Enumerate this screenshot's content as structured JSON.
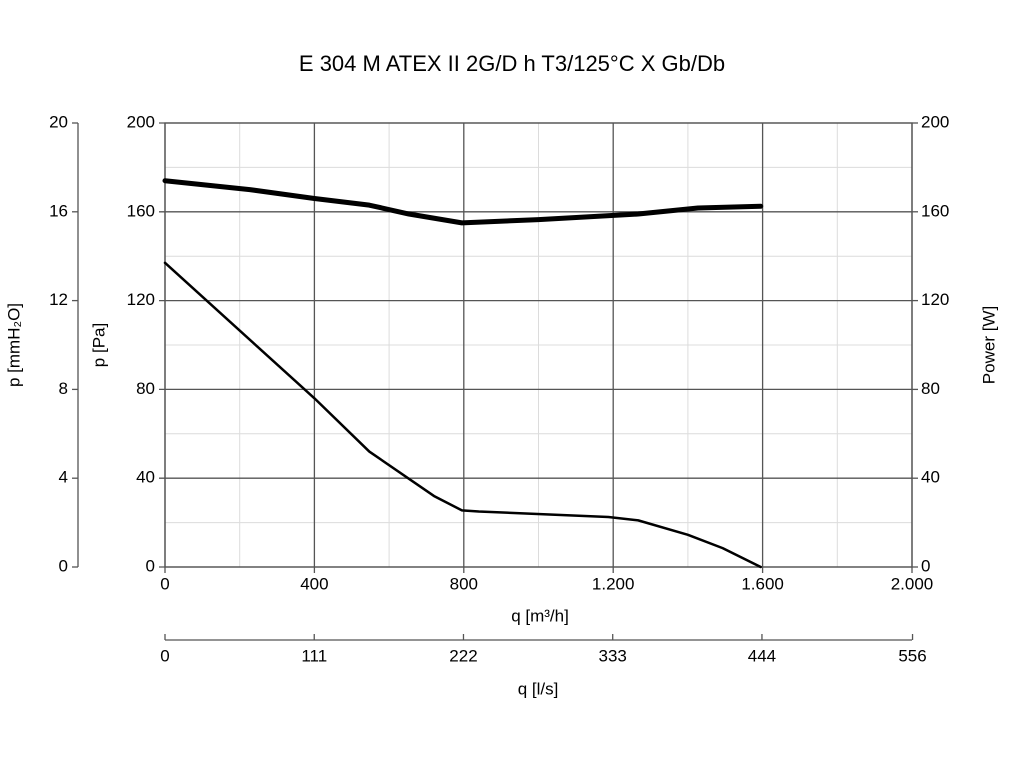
{
  "chart_data": {
    "type": "line",
    "title": "E 304 M ATEX II 2G/D h T3/125°C X Gb/Db",
    "x_label": "q [m³/h]",
    "x2_label": "q [l/s]",
    "y_label": "p [Pa]",
    "y_outer_label": "p [mmH₂O]",
    "y2_label": "Power [W]",
    "xlim": [
      0,
      2000
    ],
    "xticks": [
      0,
      400,
      800,
      {
        "value": 1200,
        "label": "1.200"
      },
      {
        "value": 1600,
        "label": "1.600"
      },
      {
        "value": 2000,
        "label": "2.000"
      }
    ],
    "x2lim": [
      0,
      555.6
    ],
    "x2ticks": [
      0,
      111,
      222,
      333,
      444,
      556
    ],
    "ylim": [
      0,
      200
    ],
    "yticks": [
      0,
      40,
      80,
      120,
      160,
      200
    ],
    "y_outer_lim": [
      0,
      20
    ],
    "y_outer_ticks": [
      0,
      4,
      8,
      12,
      16,
      20
    ],
    "y2lim": [
      0,
      200
    ],
    "y2ticks": [
      0,
      40,
      80,
      120,
      160,
      200
    ],
    "grid": true,
    "series": [
      {
        "color": "#000000",
        "x": [
          0,
          400,
          547,
          720,
          795,
          840,
          1187,
          1267,
          1400,
          1493,
          1595
        ],
        "values": [
          137,
          76,
          52,
          32,
          25.5,
          25,
          22.5,
          21,
          14.5,
          8.5,
          0
        ]
      },
      {
        "color": "#000000",
        "axis": "y2",
        "x": [
          0,
          227,
          400,
          547,
          653,
          795,
          1000,
          1267,
          1427,
          1595
        ],
        "values": [
          174,
          170,
          166,
          163,
          159,
          155,
          156.5,
          159,
          161.7,
          162.5
        ]
      }
    ]
  }
}
